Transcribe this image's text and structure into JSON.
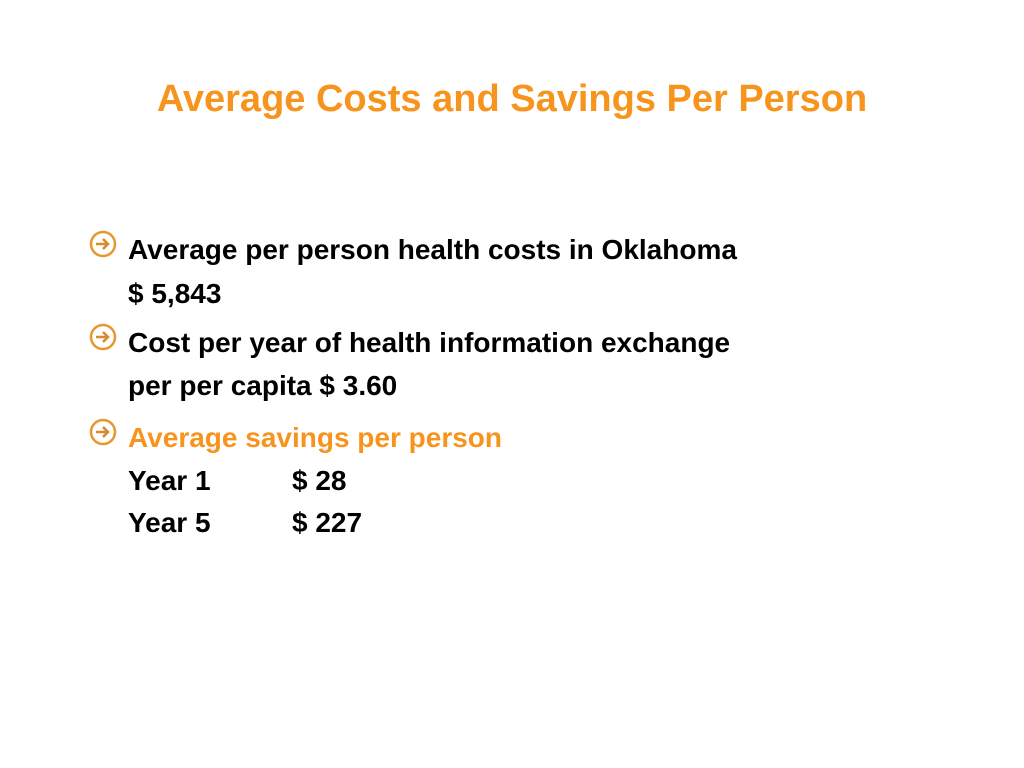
{
  "header": {
    "title": "Average Costs and Savings Per Person"
  },
  "bullets": [
    {
      "lines": [
        "Average per person health costs in Oklahoma",
        "$ 5,843"
      ]
    },
    {
      "lines": [
        "Cost per year of health information exchange",
        "per per capita $ 3.60"
      ]
    },
    {
      "heading": "Average savings per person",
      "rows": [
        [
          "Year 1",
          "$ 28"
        ],
        [
          "Year 5",
          "$ 227"
        ]
      ]
    }
  ]
}
